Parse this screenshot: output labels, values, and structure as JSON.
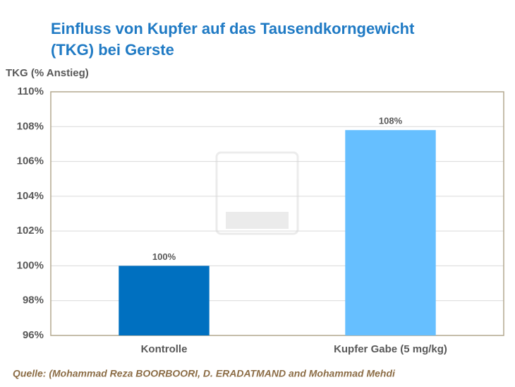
{
  "chart_data": {
    "type": "bar",
    "title": [
      "Einfluss von Kupfer auf das Tausendkorngewicht",
      "(TKG) bei Gerste"
    ],
    "y_label": "TKG (% Anstieg)",
    "categories": [
      "Kontrolle",
      "Kupfer Gabe (5 mg/kg)"
    ],
    "values": [
      100,
      107.8
    ],
    "value_labels": [
      "100%",
      "108%"
    ],
    "colors": [
      "#0070c0",
      "#66bfff"
    ],
    "ylim": [
      96,
      110
    ],
    "yticks": [
      {
        "value": 96,
        "label": "96%"
      },
      {
        "value": 98,
        "label": "98%"
      },
      {
        "value": 100,
        "label": "100%"
      },
      {
        "value": 102,
        "label": "102%"
      },
      {
        "value": 104,
        "label": "104%"
      },
      {
        "value": 106,
        "label": "106%"
      },
      {
        "value": 108,
        "label": "108%"
      },
      {
        "value": 110,
        "label": "110%"
      }
    ],
    "grid": true,
    "source": "Quelle: (Mohammad Reza BOORBOORI, D. ERADATMAND and Mohammad Mehdi"
  }
}
